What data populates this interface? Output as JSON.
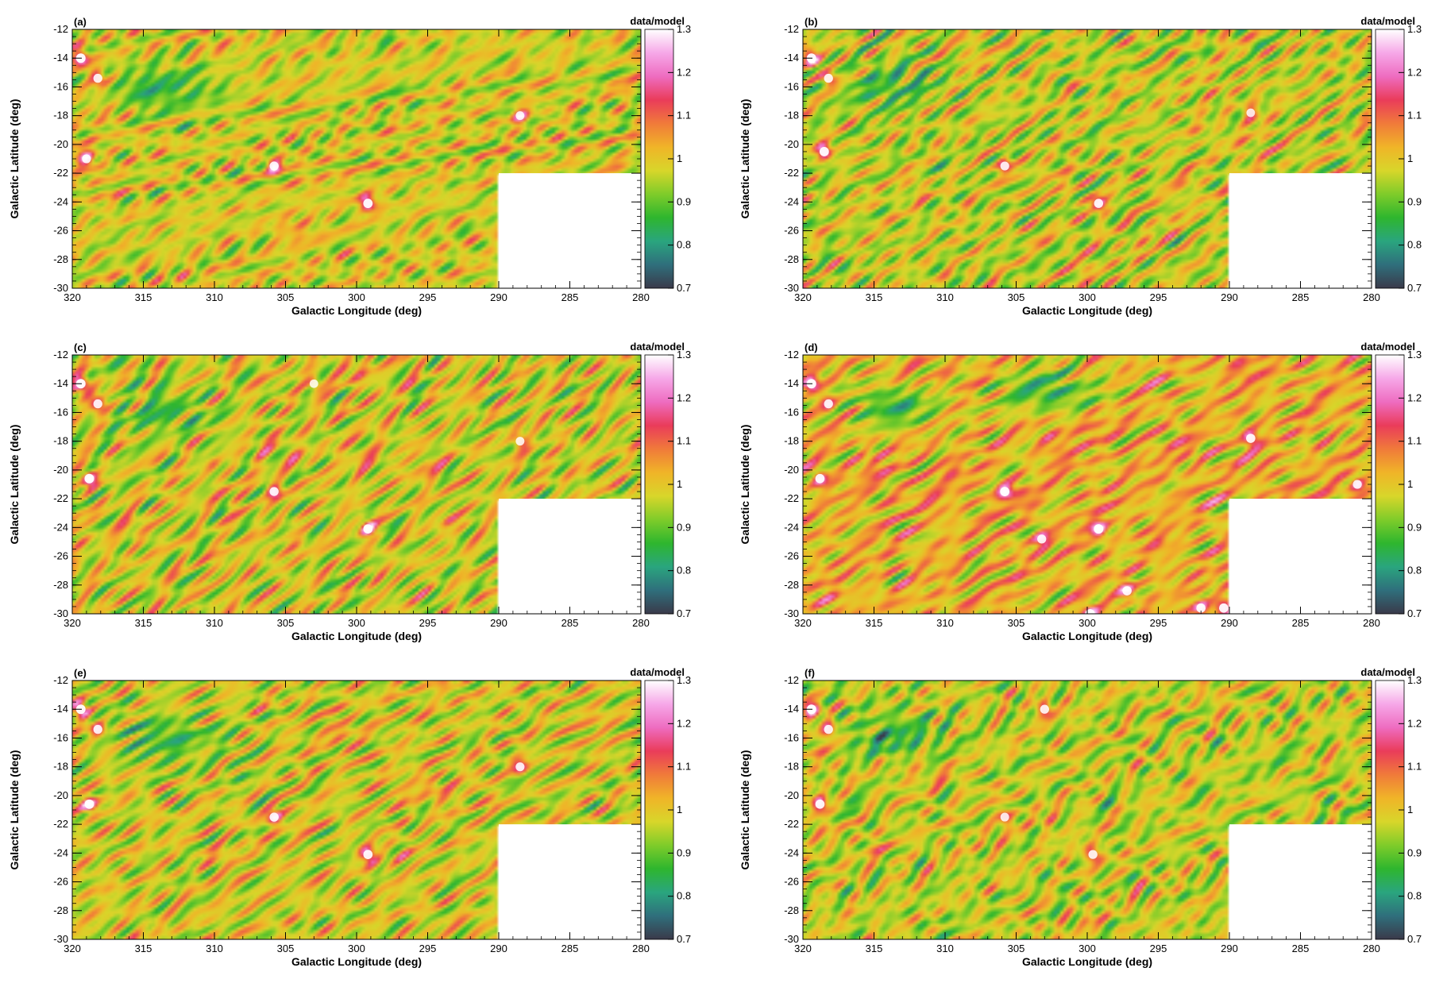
{
  "colors": {
    "colormap": [
      "#3a3a4a",
      "#2f6f7c",
      "#2aa57e",
      "#2eb62e",
      "#7fcc2a",
      "#d8d62a",
      "#f0b428",
      "#f07a3a",
      "#ea3c5a",
      "#ee6cc0",
      "#f6a8e8",
      "#ffffff"
    ],
    "background": "#ffffff",
    "axis": "#000000"
  },
  "chart_data": [
    {
      "type": "heatmap",
      "panel_label": "(a)",
      "xlabel": "Galactic Longitude (deg)",
      "ylabel": "Galactic Latitude (deg)",
      "colorbar_title": "data/model",
      "xlim": [
        320,
        280
      ],
      "ylim": [
        -30,
        -12
      ],
      "x_ticks": [
        "320",
        "315",
        "310",
        "305",
        "300",
        "295",
        "290",
        "285",
        "280"
      ],
      "y_ticks": [
        "-12",
        "-14",
        "-16",
        "-18",
        "-20",
        "-22",
        "-24",
        "-26",
        "-28",
        "-30"
      ],
      "z_range": [
        0.7,
        1.3
      ],
      "colorbar_ticks": [
        "1.3",
        "1.2",
        "1.1",
        "1",
        "0.9",
        "0.8",
        "0.7"
      ],
      "masked_region": {
        "l_range": [
          290,
          280
        ],
        "b_range": [
          -30,
          -22
        ]
      },
      "background_level": 0.98,
      "hotspots": [
        {
          "l": 319.4,
          "b": -14.0,
          "value": 1.3
        },
        {
          "l": 318.2,
          "b": -15.4,
          "value": 1.2
        },
        {
          "l": 319.0,
          "b": -21.0,
          "value": 1.2
        },
        {
          "l": 305.8,
          "b": -21.5,
          "value": 1.22
        },
        {
          "l": 299.2,
          "b": -24.1,
          "value": 1.28
        },
        {
          "l": 288.5,
          "b": -18.0,
          "value": 1.15
        }
      ],
      "cold_regions": [
        {
          "l": 313.5,
          "b": -16.0,
          "value": 0.86
        }
      ]
    },
    {
      "type": "heatmap",
      "panel_label": "(b)",
      "xlabel": "Galactic Longitude (deg)",
      "ylabel": "Galactic Latitude (deg)",
      "colorbar_title": "data/model",
      "xlim": [
        320,
        280
      ],
      "ylim": [
        -30,
        -12
      ],
      "x_ticks": [
        "320",
        "315",
        "310",
        "305",
        "300",
        "295",
        "290",
        "285",
        "280"
      ],
      "y_ticks": [
        "-12",
        "-14",
        "-16",
        "-18",
        "-20",
        "-22",
        "-24",
        "-26",
        "-28",
        "-30"
      ],
      "z_range": [
        0.7,
        1.3
      ],
      "colorbar_ticks": [
        "1.3",
        "1.2",
        "1.1",
        "1",
        "0.9",
        "0.8",
        "0.7"
      ],
      "masked_region": {
        "l_range": [
          290,
          280
        ],
        "b_range": [
          -30,
          -22
        ]
      },
      "background_level": 0.97,
      "hotspots": [
        {
          "l": 319.4,
          "b": -14.0,
          "value": 1.3
        },
        {
          "l": 318.2,
          "b": -15.4,
          "value": 1.2
        },
        {
          "l": 318.5,
          "b": -20.5,
          "value": 1.27
        },
        {
          "l": 305.8,
          "b": -21.5,
          "value": 1.18
        },
        {
          "l": 299.2,
          "b": -24.1,
          "value": 1.22
        },
        {
          "l": 288.5,
          "b": -17.8,
          "value": 1.12
        }
      ],
      "cold_regions": [
        {
          "l": 313.5,
          "b": -16.0,
          "value": 0.86
        }
      ]
    },
    {
      "type": "heatmap",
      "panel_label": "(c)",
      "xlabel": "Galactic Longitude (deg)",
      "ylabel": "Galactic Latitude (deg)",
      "colorbar_title": "data/model",
      "xlim": [
        320,
        280
      ],
      "ylim": [
        -30,
        -12
      ],
      "x_ticks": [
        "320",
        "315",
        "310",
        "305",
        "300",
        "295",
        "290",
        "285",
        "280"
      ],
      "y_ticks": [
        "-12",
        "-14",
        "-16",
        "-18",
        "-20",
        "-22",
        "-24",
        "-26",
        "-28",
        "-30"
      ],
      "z_range": [
        0.7,
        1.3
      ],
      "colorbar_ticks": [
        "1.3",
        "1.2",
        "1.1",
        "1",
        "0.9",
        "0.8",
        "0.7"
      ],
      "masked_region": {
        "l_range": [
          290,
          280
        ],
        "b_range": [
          -30,
          -22
        ]
      },
      "background_level": 0.98,
      "hotspots": [
        {
          "l": 319.4,
          "b": -14.0,
          "value": 1.3
        },
        {
          "l": 318.2,
          "b": -15.4,
          "value": 1.2
        },
        {
          "l": 318.8,
          "b": -20.6,
          "value": 1.3
        },
        {
          "l": 305.8,
          "b": -21.5,
          "value": 1.2
        },
        {
          "l": 299.2,
          "b": -24.1,
          "value": 1.26
        },
        {
          "l": 288.5,
          "b": -18.0,
          "value": 1.15
        },
        {
          "l": 303.0,
          "b": -14.0,
          "value": 1.12
        }
      ],
      "cold_regions": [
        {
          "l": 313.5,
          "b": -16.0,
          "value": 0.86
        }
      ]
    },
    {
      "type": "heatmap",
      "panel_label": "(d)",
      "xlabel": "Galactic Longitude (deg)",
      "ylabel": "Galactic Latitude (deg)",
      "colorbar_title": "data/model",
      "xlim": [
        320,
        280
      ],
      "ylim": [
        -30,
        -12
      ],
      "x_ticks": [
        "320",
        "315",
        "310",
        "305",
        "300",
        "295",
        "290",
        "285",
        "280"
      ],
      "y_ticks": [
        "-12",
        "-14",
        "-16",
        "-18",
        "-20",
        "-22",
        "-24",
        "-26",
        "-28",
        "-30"
      ],
      "z_range": [
        0.7,
        1.3
      ],
      "colorbar_ticks": [
        "1.3",
        "1.2",
        "1.1",
        "1",
        "0.9",
        "0.8",
        "0.7"
      ],
      "masked_region": {
        "l_range": [
          290,
          280
        ],
        "b_range": [
          -30,
          -22
        ]
      },
      "background_level": 1.02,
      "hotspots": [
        {
          "l": 319.4,
          "b": -14.0,
          "value": 1.3
        },
        {
          "l": 318.2,
          "b": -15.4,
          "value": 1.2
        },
        {
          "l": 318.8,
          "b": -20.6,
          "value": 1.25
        },
        {
          "l": 305.8,
          "b": -21.5,
          "value": 1.27
        },
        {
          "l": 299.2,
          "b": -24.1,
          "value": 1.3
        },
        {
          "l": 288.5,
          "b": -17.8,
          "value": 1.25
        },
        {
          "l": 281.0,
          "b": -21.0,
          "value": 1.2
        },
        {
          "l": 299.8,
          "b": -30.0,
          "value": 1.3
        },
        {
          "l": 297.2,
          "b": -28.4,
          "value": 1.25
        },
        {
          "l": 292.0,
          "b": -29.6,
          "value": 1.25
        },
        {
          "l": 290.4,
          "b": -29.6,
          "value": 1.25
        },
        {
          "l": 303.2,
          "b": -24.8,
          "value": 1.2
        }
      ],
      "cold_regions": [
        {
          "l": 313.5,
          "b": -15.5,
          "value": 0.86
        },
        {
          "l": 302.5,
          "b": -14.5,
          "value": 0.85
        }
      ]
    },
    {
      "type": "heatmap",
      "panel_label": "(e)",
      "xlabel": "Galactic Longitude (deg)",
      "ylabel": "Galactic Latitude (deg)",
      "colorbar_title": "data/model",
      "xlim": [
        320,
        280
      ],
      "ylim": [
        -30,
        -12
      ],
      "x_ticks": [
        "320",
        "315",
        "310",
        "305",
        "300",
        "295",
        "290",
        "285",
        "280"
      ],
      "y_ticks": [
        "-12",
        "-14",
        "-16",
        "-18",
        "-20",
        "-22",
        "-24",
        "-26",
        "-28",
        "-30"
      ],
      "z_range": [
        0.7,
        1.3
      ],
      "colorbar_ticks": [
        "1.3",
        "1.2",
        "1.1",
        "1",
        "0.9",
        "0.8",
        "0.7"
      ],
      "masked_region": {
        "l_range": [
          290,
          280
        ],
        "b_range": [
          -30,
          -22
        ]
      },
      "background_level": 0.98,
      "hotspots": [
        {
          "l": 319.4,
          "b": -14.0,
          "value": 1.3
        },
        {
          "l": 318.2,
          "b": -15.4,
          "value": 1.2
        },
        {
          "l": 318.8,
          "b": -20.6,
          "value": 1.28
        },
        {
          "l": 305.8,
          "b": -21.5,
          "value": 1.22
        },
        {
          "l": 299.2,
          "b": -24.1,
          "value": 1.26
        },
        {
          "l": 288.5,
          "b": -18.0,
          "value": 1.18
        }
      ],
      "cold_regions": [
        {
          "l": 313.5,
          "b": -16.0,
          "value": 0.86
        }
      ]
    },
    {
      "type": "heatmap",
      "panel_label": "(f)",
      "xlabel": "Galactic Longitude (deg)",
      "ylabel": "Galactic Latitude (deg)",
      "colorbar_title": "data/model",
      "xlim": [
        320,
        280
      ],
      "ylim": [
        -30,
        -12
      ],
      "x_ticks": [
        "320",
        "315",
        "310",
        "305",
        "300",
        "295",
        "290",
        "285",
        "280"
      ],
      "y_ticks": [
        "-12",
        "-14",
        "-16",
        "-18",
        "-20",
        "-22",
        "-24",
        "-26",
        "-28",
        "-30"
      ],
      "z_range": [
        0.7,
        1.3
      ],
      "colorbar_ticks": [
        "1.3",
        "1.2",
        "1.1",
        "1",
        "0.9",
        "0.8",
        "0.7"
      ],
      "masked_region": {
        "l_range": [
          290,
          280
        ],
        "b_range": [
          -30,
          -22
        ]
      },
      "background_level": 0.97,
      "hotspots": [
        {
          "l": 319.4,
          "b": -14.0,
          "value": 1.3
        },
        {
          "l": 318.2,
          "b": -15.4,
          "value": 1.2
        },
        {
          "l": 318.8,
          "b": -20.6,
          "value": 1.25
        },
        {
          "l": 303.0,
          "b": -14.0,
          "value": 1.2
        },
        {
          "l": 305.8,
          "b": -21.5,
          "value": 1.15
        },
        {
          "l": 299.6,
          "b": -24.1,
          "value": 1.2
        }
      ],
      "cold_regions": [
        {
          "l": 313.5,
          "b": -16.0,
          "value": 0.86
        }
      ]
    }
  ]
}
